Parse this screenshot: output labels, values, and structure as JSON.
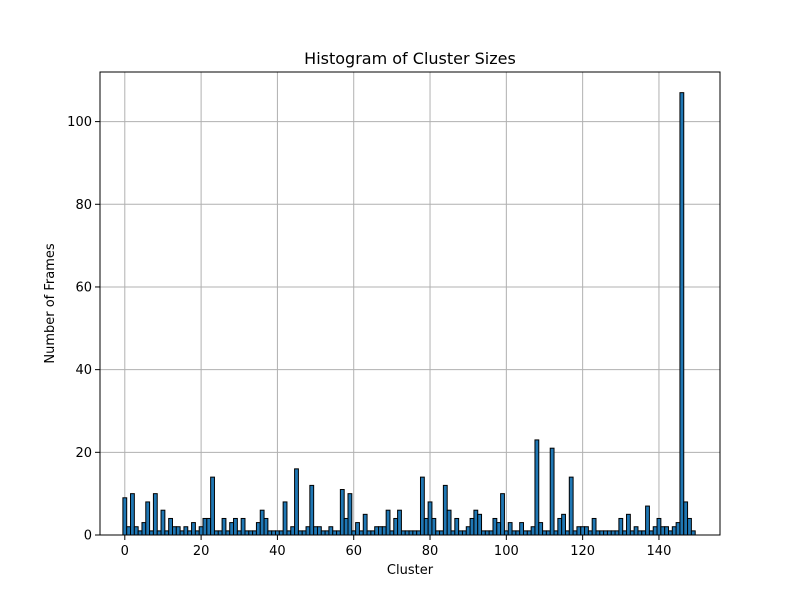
{
  "chart_data": {
    "type": "bar",
    "title": "Histogram of Cluster Sizes",
    "xlabel": "Cluster",
    "ylabel": "Number of Frames",
    "xlim": [
      -6.5,
      156
    ],
    "ylim": [
      0,
      112
    ],
    "xticks": [
      0,
      20,
      40,
      60,
      80,
      100,
      120,
      140
    ],
    "yticks": [
      0,
      20,
      40,
      60,
      80,
      100
    ],
    "grid": true,
    "colors": {
      "bar_fill": "#1f77b4",
      "bar_edge": "#000000",
      "grid": "#b0b0b0"
    },
    "clusters": [
      0,
      1,
      2,
      3,
      4,
      5,
      6,
      7,
      8,
      9,
      10,
      11,
      12,
      13,
      14,
      15,
      16,
      17,
      18,
      19,
      20,
      21,
      22,
      23,
      24,
      25,
      26,
      27,
      28,
      29,
      30,
      31,
      32,
      33,
      34,
      35,
      36,
      37,
      38,
      39,
      40,
      41,
      42,
      43,
      44,
      45,
      46,
      47,
      48,
      49,
      50,
      51,
      52,
      53,
      54,
      55,
      56,
      57,
      58,
      59,
      60,
      61,
      62,
      63,
      64,
      65,
      66,
      67,
      68,
      69,
      70,
      71,
      72,
      73,
      74,
      75,
      76,
      77,
      78,
      79,
      80,
      81,
      82,
      83,
      84,
      85,
      86,
      87,
      88,
      89,
      90,
      91,
      92,
      93,
      94,
      95,
      96,
      97,
      98,
      99,
      100,
      101,
      102,
      103,
      104,
      105,
      106,
      107,
      108,
      109,
      110,
      111,
      112,
      113,
      114,
      115,
      116,
      117,
      118,
      119,
      120,
      121,
      122,
      123,
      124,
      125,
      126,
      127,
      128,
      129,
      130,
      131,
      132,
      133,
      134,
      135,
      136,
      137,
      138,
      139,
      140,
      141,
      142,
      143,
      144,
      145,
      146,
      147,
      148,
      149
    ],
    "values": [
      9,
      2,
      10,
      2,
      1,
      3,
      8,
      1,
      10,
      1,
      6,
      1,
      4,
      2,
      2,
      1,
      2,
      1,
      3,
      1,
      2,
      4,
      4,
      14,
      1,
      1,
      4,
      1,
      3,
      4,
      1,
      4,
      1,
      1,
      1,
      3,
      6,
      4,
      1,
      1,
      1,
      1,
      8,
      1,
      2,
      16,
      1,
      1,
      2,
      12,
      2,
      2,
      1,
      1,
      2,
      1,
      1,
      11,
      4,
      10,
      1,
      3,
      1,
      5,
      1,
      1,
      2,
      2,
      2,
      6,
      1,
      4,
      6,
      1,
      1,
      1,
      1,
      1,
      14,
      4,
      8,
      4,
      1,
      1,
      12,
      6,
      1,
      4,
      1,
      1,
      2,
      4,
      6,
      5,
      1,
      1,
      1,
      4,
      3,
      10,
      1,
      3,
      1,
      1,
      3,
      1,
      1,
      2,
      23,
      3,
      1,
      1,
      21,
      1,
      4,
      5,
      1,
      14,
      1,
      2,
      2,
      2,
      1,
      4,
      1,
      1,
      1,
      1,
      1,
      1,
      4,
      1,
      5,
      1,
      2,
      1,
      1,
      7,
      1,
      2,
      4,
      2,
      2,
      1,
      2,
      3,
      107,
      8,
      4,
      1
    ]
  }
}
